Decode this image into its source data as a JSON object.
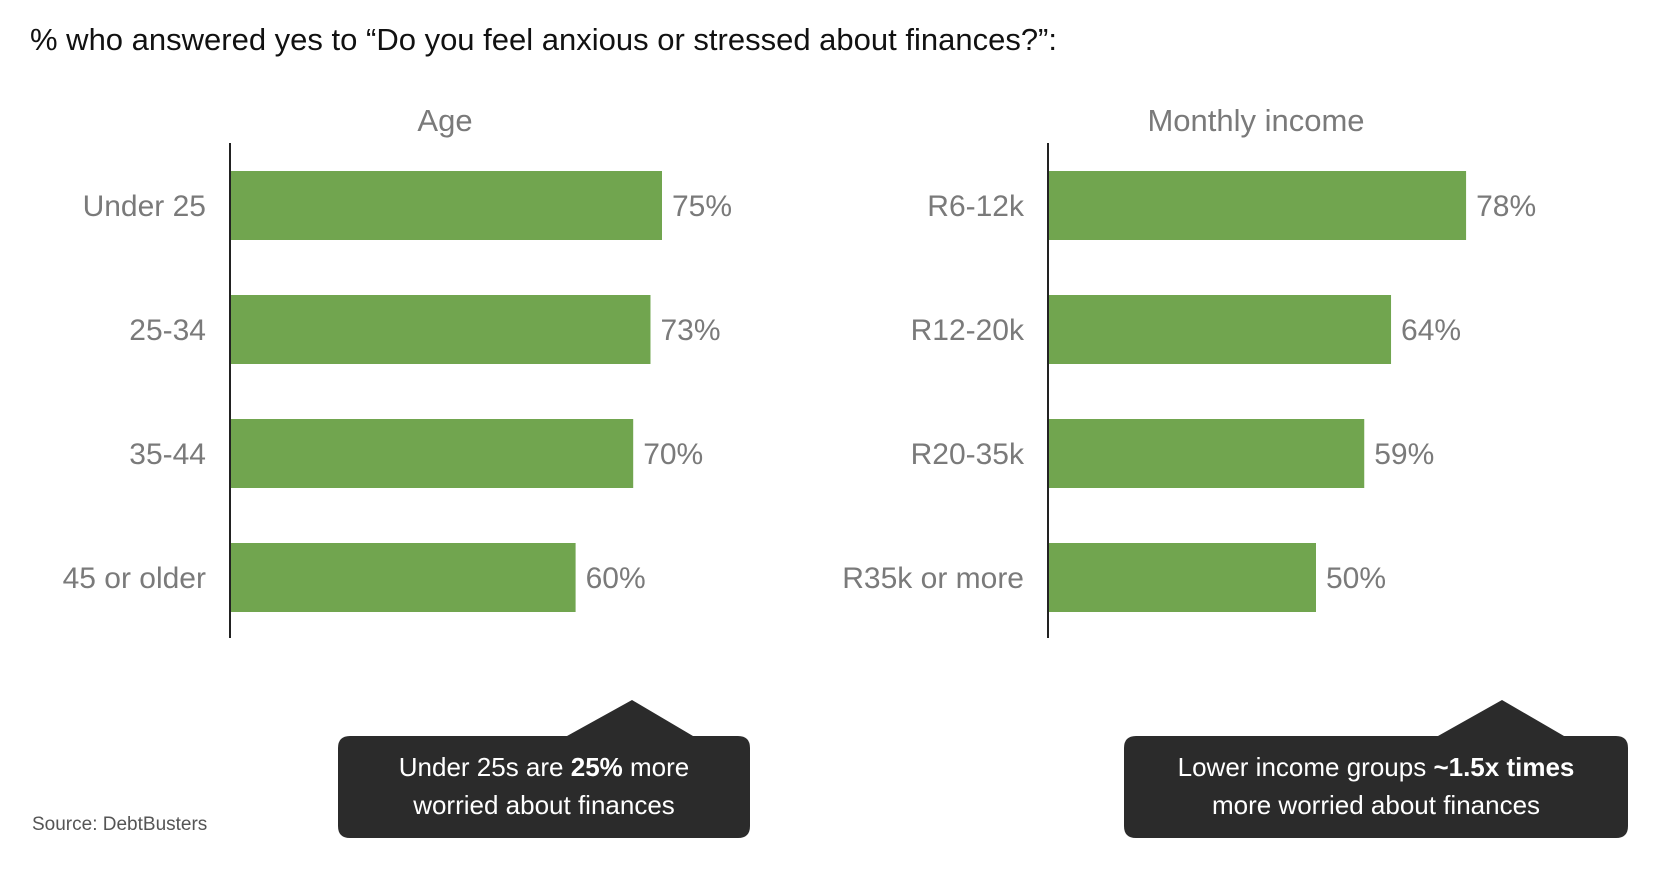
{
  "title": "% who answered yes to “Do you feel anxious or stressed about finances?”:",
  "source": "Source: DebtBusters",
  "colors": {
    "bar": "#71a54f",
    "label": "#7a7a7a",
    "axis": "#222222",
    "callout_bg": "#2b2b2b"
  },
  "chart_data": [
    {
      "type": "bar",
      "orientation": "horizontal",
      "title": "Age",
      "categories": [
        "Under 25",
        "25-34",
        "35-44",
        "45 or older"
      ],
      "values": [
        75,
        73,
        70,
        60
      ],
      "data_labels": [
        "75%",
        "73%",
        "70%",
        "60%"
      ],
      "unit": "%",
      "xlim": [
        0,
        100
      ],
      "grid": false
    },
    {
      "type": "bar",
      "orientation": "horizontal",
      "title": "Monthly income",
      "categories": [
        "R6-12k",
        "R12-20k",
        "R20-35k",
        "R35k or more"
      ],
      "values": [
        78,
        64,
        59,
        50
      ],
      "data_labels": [
        "78%",
        "64%",
        "59%",
        "50%"
      ],
      "unit": "%",
      "xlim": [
        0,
        100
      ],
      "grid": false
    }
  ],
  "callouts": {
    "age": {
      "line1_pre": "Under 25s are ",
      "line1_bold": "25%",
      "line1_post": " more",
      "line2": "worried about finances"
    },
    "income": {
      "line1_pre": "Lower income groups ",
      "line1_bold": "~1.5x times",
      "line2": "more worried about finances"
    }
  }
}
